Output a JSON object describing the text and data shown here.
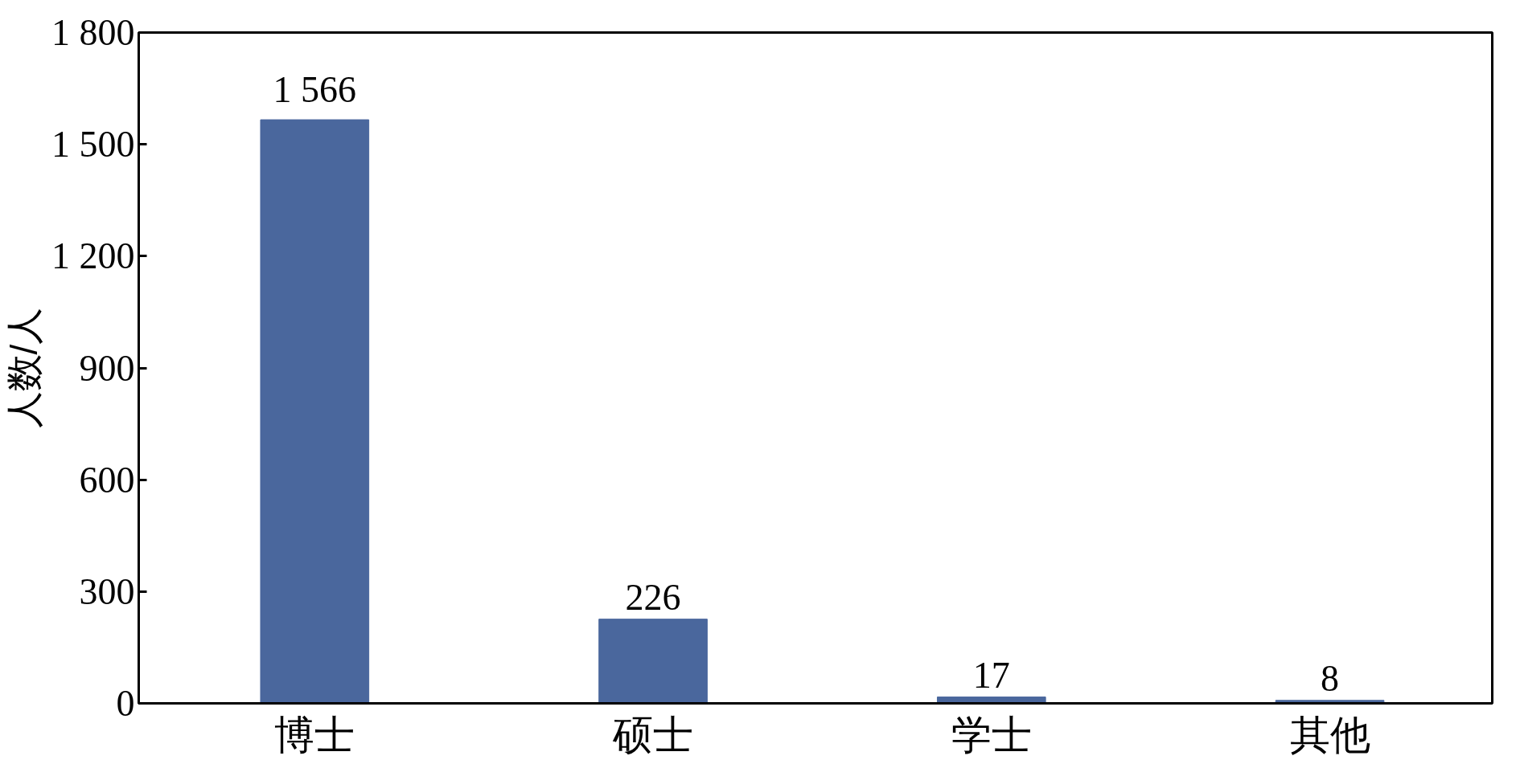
{
  "chart_data": {
    "type": "bar",
    "ylabel": "人数/人",
    "categories": [
      "博士",
      "硕士",
      "学士",
      "其他"
    ],
    "values": [
      1566,
      226,
      17,
      8
    ],
    "value_labels": [
      "1 566",
      "226",
      "17",
      "8"
    ],
    "color": "#4a679d",
    "ylim": [
      0,
      1800
    ],
    "yticks": [
      0,
      300,
      600,
      900,
      {
        "value": 1200,
        "label": "1 200"
      },
      {
        "value": 1500,
        "label": "1 500"
      },
      {
        "value": 1800,
        "label": "1 800"
      }
    ],
    "grid": false
  }
}
